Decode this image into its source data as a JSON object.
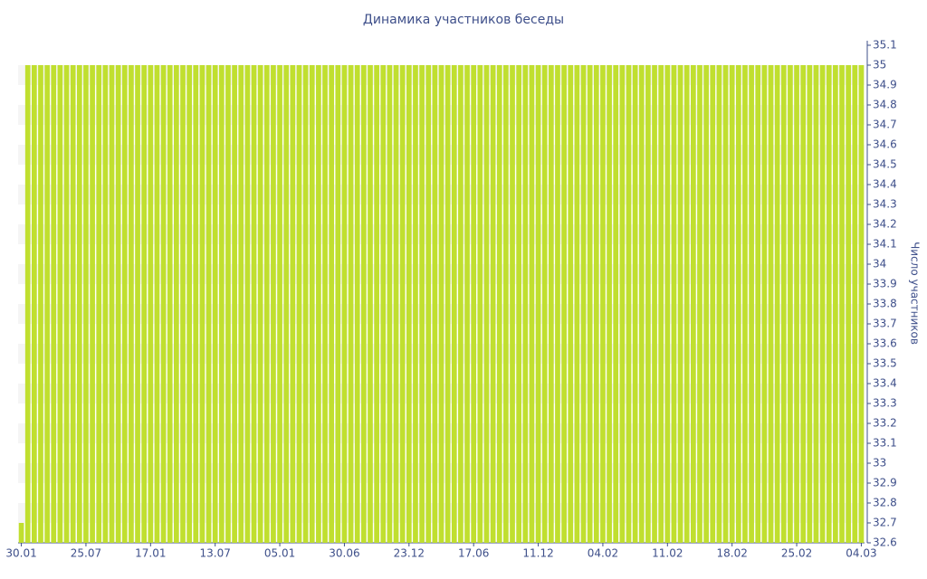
{
  "chart_data": {
    "type": "bar",
    "title": "Динамика участников беседы",
    "y_axis_label": "Число участников",
    "categories": [
      "30.01",
      null,
      null,
      null,
      null,
      null,
      null,
      null,
      null,
      null,
      "25.07",
      null,
      null,
      null,
      null,
      null,
      null,
      null,
      null,
      null,
      "17.01",
      null,
      null,
      null,
      null,
      null,
      null,
      null,
      null,
      null,
      "13.07",
      null,
      null,
      null,
      null,
      null,
      null,
      null,
      null,
      null,
      "05.01",
      null,
      null,
      null,
      null,
      null,
      null,
      null,
      null,
      null,
      "30.06",
      null,
      null,
      null,
      null,
      null,
      null,
      null,
      null,
      null,
      "23.12",
      null,
      null,
      null,
      null,
      null,
      null,
      null,
      null,
      null,
      "17.06",
      null,
      null,
      null,
      null,
      null,
      null,
      null,
      null,
      null,
      "11.12",
      null,
      null,
      null,
      null,
      null,
      null,
      null,
      null,
      null,
      "04.02",
      null,
      null,
      null,
      null,
      null,
      null,
      null,
      null,
      null,
      "11.02",
      null,
      null,
      null,
      null,
      null,
      null,
      null,
      null,
      null,
      "18.02",
      null,
      null,
      null,
      null,
      null,
      null,
      null,
      null,
      null,
      "25.02",
      null,
      null,
      null,
      null,
      null,
      null,
      null,
      null,
      null,
      "04.03"
    ],
    "values": [
      32.7,
      35,
      35,
      35,
      35,
      35,
      35,
      35,
      35,
      35,
      35,
      35,
      35,
      35,
      35,
      35,
      35,
      35,
      35,
      35,
      35,
      35,
      35,
      35,
      35,
      35,
      35,
      35,
      35,
      35,
      35,
      35,
      35,
      35,
      35,
      35,
      35,
      35,
      35,
      35,
      35,
      35,
      35,
      35,
      35,
      35,
      35,
      35,
      35,
      35,
      35,
      35,
      35,
      35,
      35,
      35,
      35,
      35,
      35,
      35,
      35,
      35,
      35,
      35,
      35,
      35,
      35,
      35,
      35,
      35,
      35,
      35,
      35,
      35,
      35,
      35,
      35,
      35,
      35,
      35,
      35,
      35,
      35,
      35,
      35,
      35,
      35,
      35,
      35,
      35,
      35,
      35,
      35,
      35,
      35,
      35,
      35,
      35,
      35,
      35,
      35,
      35,
      35,
      35,
      35,
      35,
      35,
      35,
      35,
      35,
      35,
      35,
      35,
      35,
      35,
      35,
      35,
      35,
      35,
      35,
      35,
      35,
      35,
      35,
      35,
      35,
      35,
      35,
      35,
      35,
      35
    ],
    "color": "#c0df2f",
    "ylim": [
      32.6,
      35.1
    ],
    "yticks": [
      32.6,
      32.7,
      32.8,
      32.9,
      33,
      33.1,
      33.2,
      33.3,
      33.4,
      33.5,
      33.6,
      33.7,
      33.8,
      33.9,
      34,
      34.1,
      34.2,
      34.3,
      34.4,
      34.5,
      34.6,
      34.7,
      34.8,
      34.9,
      35,
      35.1
    ],
    "y_axis_side": "right"
  }
}
